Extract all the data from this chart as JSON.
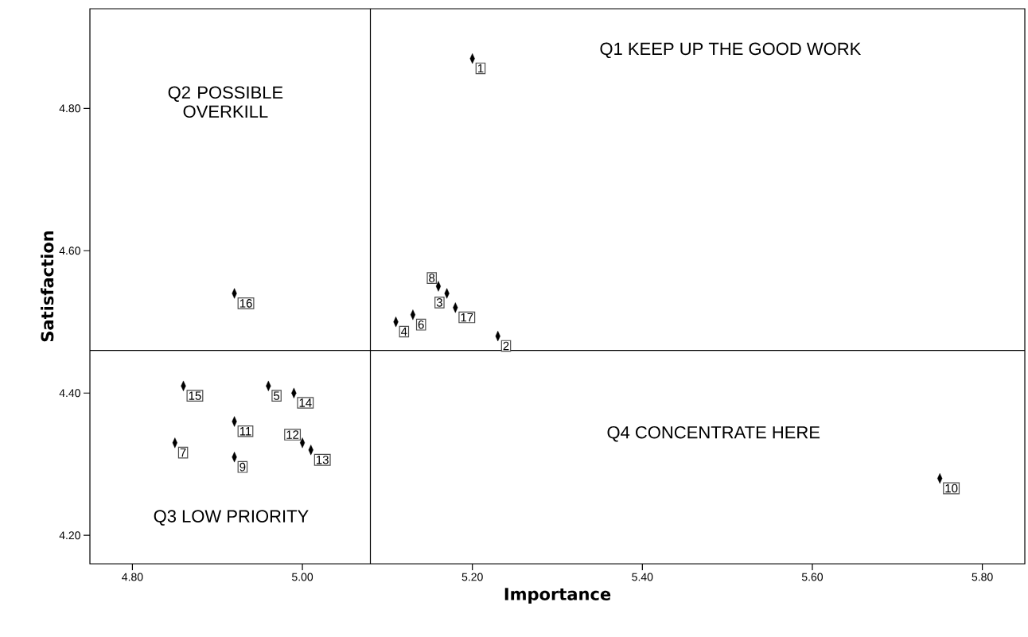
{
  "chart_data": {
    "type": "scatter",
    "xlabel": "Importance",
    "ylabel": "Satisfaction",
    "color": "#000000",
    "marker": "diamond",
    "x": [
      5.2,
      5.23,
      5.17,
      5.11,
      4.96,
      5.13,
      4.85,
      5.16,
      4.92,
      5.75,
      4.92,
      5.0,
      5.01,
      4.99,
      4.86,
      4.92,
      5.18
    ],
    "values": [
      4.87,
      4.48,
      4.54,
      4.5,
      4.41,
      4.51,
      4.33,
      4.55,
      4.31,
      4.28,
      4.36,
      4.33,
      4.32,
      4.4,
      4.41,
      4.54,
      4.52
    ],
    "xlim": [
      4.75,
      5.85
    ],
    "ylim": [
      4.16,
      4.94
    ],
    "xticks": [
      {
        "value": 4.8,
        "label": "4.80"
      },
      {
        "value": 5.0,
        "label": "5.00"
      },
      {
        "value": 5.2,
        "label": "5.20"
      },
      {
        "value": 5.4,
        "label": "5.40"
      },
      {
        "value": 5.6,
        "label": "5.60"
      },
      {
        "value": 5.8,
        "label": "5.80"
      }
    ],
    "yticks": [
      {
        "value": 4.2,
        "label": "4.20"
      },
      {
        "value": 4.4,
        "label": "4.40"
      },
      {
        "value": 4.6,
        "label": "4.60"
      },
      {
        "value": 4.8,
        "label": "4.80"
      }
    ],
    "ref_lines": [
      {
        "axis": "x",
        "value": 5.08,
        "color": "#000000"
      },
      {
        "axis": "y",
        "value": 4.46,
        "color": "#000000"
      }
    ],
    "annotations": [
      "Q1 KEEP UP THE GOOD WORK",
      "Q2 POSSIBLE OVERKILL",
      "Q3 LOW PRIORITY",
      "Q4 CONCENTRATE HERE",
      {
        "text": "1",
        "x": 5.2,
        "y": 4.87
      },
      {
        "text": "2",
        "x": 5.23,
        "y": 4.48
      },
      {
        "text": "3",
        "x": 5.17,
        "y": 4.54
      },
      {
        "text": "4",
        "x": 5.11,
        "y": 4.5
      },
      {
        "text": "5",
        "x": 4.96,
        "y": 4.41
      },
      {
        "text": "6",
        "x": 5.13,
        "y": 4.51
      },
      {
        "text": "7",
        "x": 4.85,
        "y": 4.33
      },
      {
        "text": "8",
        "x": 5.16,
        "y": 4.55
      },
      {
        "text": "9",
        "x": 4.92,
        "y": 4.31
      },
      {
        "text": "10",
        "x": 5.75,
        "y": 4.28
      },
      {
        "text": "11",
        "x": 4.92,
        "y": 4.36
      },
      {
        "text": "12",
        "x": 5.0,
        "y": 4.33
      },
      {
        "text": "13",
        "x": 5.01,
        "y": 4.32
      },
      {
        "text": "14",
        "x": 4.99,
        "y": 4.4
      },
      {
        "text": "15",
        "x": 4.86,
        "y": 4.41
      },
      {
        "text": "16",
        "x": 4.92,
        "y": 4.54
      },
      {
        "text": "17",
        "x": 5.18,
        "y": 4.52
      }
    ]
  }
}
